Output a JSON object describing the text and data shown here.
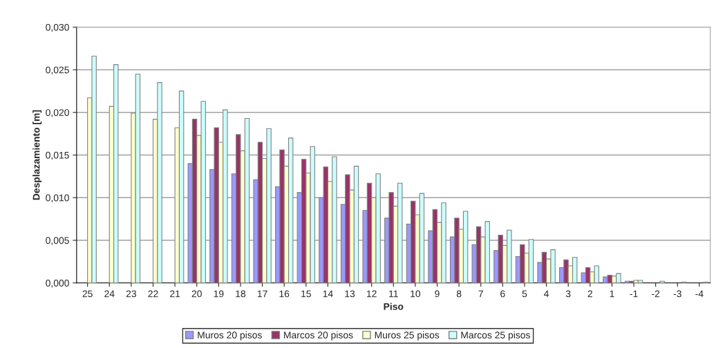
{
  "chart_data": {
    "type": "bar",
    "xlabel": "Piso",
    "ylabel": "Desplazamiento [m]",
    "categories": [
      "25",
      "24",
      "23",
      "22",
      "21",
      "20",
      "19",
      "18",
      "17",
      "16",
      "15",
      "14",
      "13",
      "12",
      "11",
      "10",
      "9",
      "8",
      "7",
      "6",
      "5",
      "4",
      "3",
      "2",
      "1",
      "-1",
      "-2",
      "-3",
      "-4"
    ],
    "series": [
      {
        "name": "Muros 20 pisos",
        "color": "#9999ff",
        "values": [
          null,
          null,
          null,
          null,
          null,
          0.014,
          0.0133,
          0.0128,
          0.0121,
          0.0113,
          0.0106,
          0.01,
          0.0092,
          0.0085,
          0.0076,
          0.0069,
          0.0061,
          0.0054,
          0.0045,
          0.0038,
          0.0031,
          0.0024,
          0.0018,
          0.0012,
          0.0007,
          0.0002,
          null,
          0.0,
          0.0
        ]
      },
      {
        "name": "Marcos 20 pisos",
        "color": "#993366",
        "values": [
          null,
          null,
          null,
          null,
          null,
          0.0192,
          0.0182,
          0.0174,
          0.0165,
          0.0156,
          0.0145,
          0.0136,
          0.0127,
          0.0117,
          0.0106,
          0.0096,
          0.0086,
          0.0076,
          0.0066,
          0.0056,
          0.0045,
          0.0036,
          0.0027,
          0.0018,
          0.0009,
          0.0002,
          null,
          0.0,
          0.0
        ]
      },
      {
        "name": "Muros 25 pisos",
        "color": "#ffffcc",
        "values": [
          0.0217,
          0.0207,
          0.0199,
          0.0192,
          0.0182,
          0.0173,
          0.0165,
          0.0155,
          0.0146,
          0.0137,
          0.0129,
          0.0119,
          0.0109,
          0.01,
          0.009,
          0.008,
          0.0071,
          0.0063,
          0.0054,
          0.0044,
          0.0035,
          0.0028,
          0.002,
          0.0013,
          0.0008,
          0.0003,
          null,
          null,
          0.0
        ]
      },
      {
        "name": "Marcos 25 pisos",
        "color": "#ccffff",
        "values": [
          0.0266,
          0.0256,
          0.0245,
          0.0235,
          0.0225,
          0.0213,
          0.0203,
          0.0193,
          0.0181,
          0.017,
          0.016,
          0.0148,
          0.0137,
          0.0128,
          0.0117,
          0.0105,
          0.0094,
          0.0084,
          0.0072,
          0.0062,
          0.0051,
          0.0039,
          0.003,
          0.002,
          0.0011,
          0.0003,
          0.0002,
          0.0001,
          0.0001
        ]
      }
    ],
    "ylim": [
      0,
      0.03
    ],
    "yticks": [
      {
        "value": 0,
        "label": "0,000"
      },
      {
        "value": 0.005,
        "label": "0,005"
      },
      {
        "value": 0.01,
        "label": "0,010"
      },
      {
        "value": 0.015,
        "label": "0,015"
      },
      {
        "value": 0.02,
        "label": "0,020"
      },
      {
        "value": 0.025,
        "label": "0,025"
      },
      {
        "value": 0.03,
        "label": "0,030"
      }
    ],
    "grid": "y",
    "legend": "bottom"
  }
}
